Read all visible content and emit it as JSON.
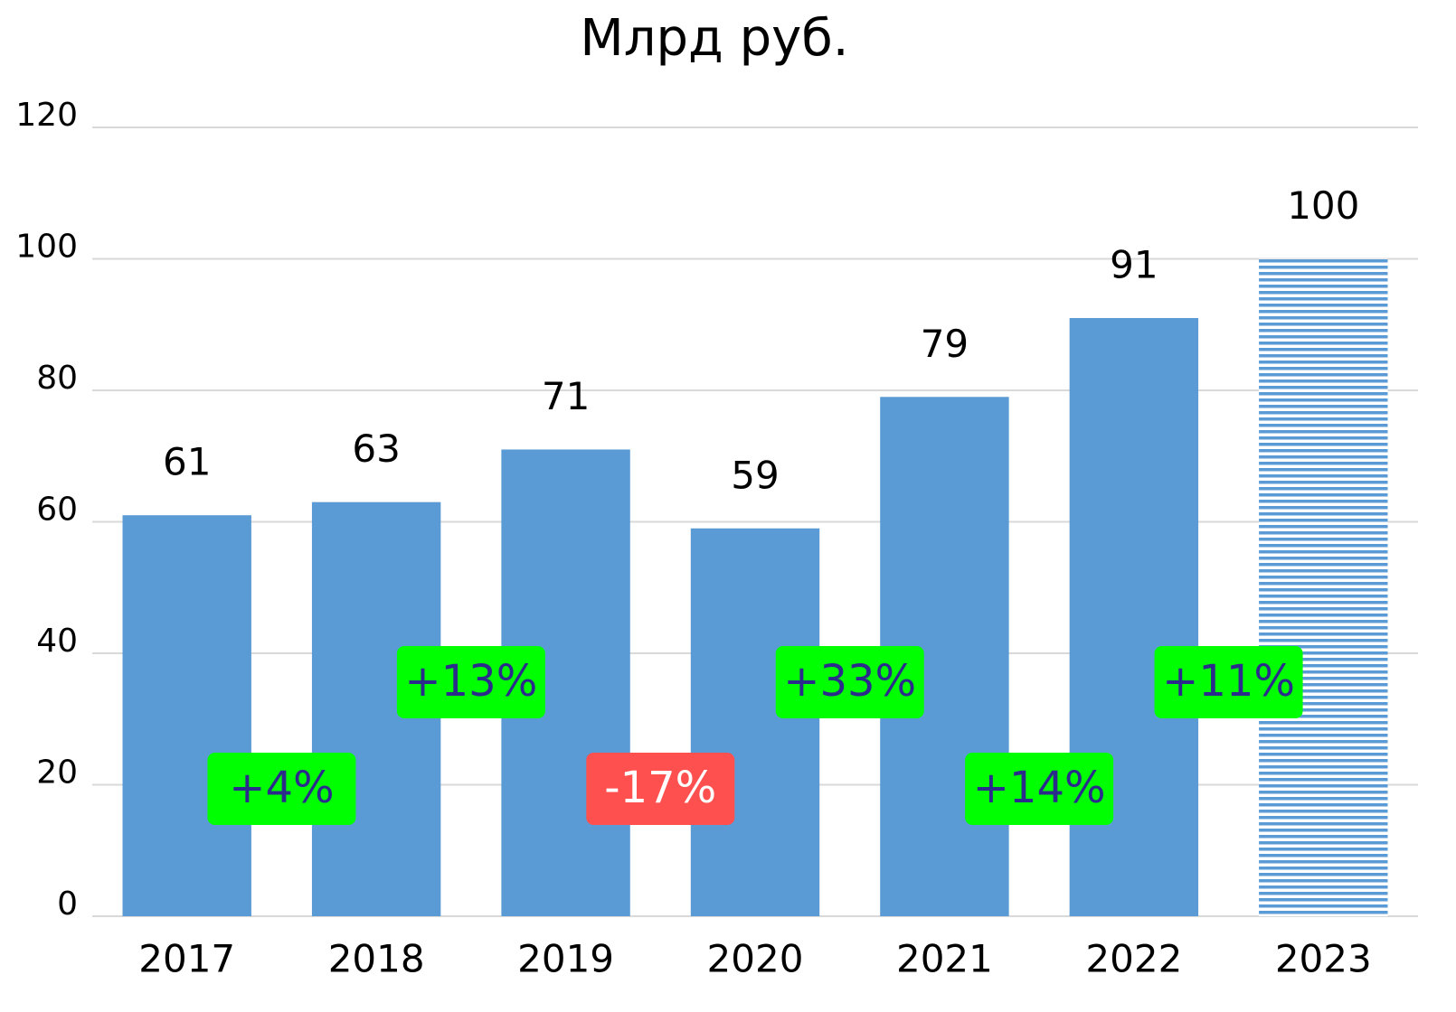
{
  "chart_data": {
    "type": "bar",
    "title": "Млрд руб.",
    "categories": [
      "2017",
      "2018",
      "2019",
      "2020",
      "2021",
      "2022",
      "2023"
    ],
    "values": [
      61,
      63,
      71,
      59,
      79,
      91,
      100
    ],
    "color": "#5b9bd5",
    "bar_styles": [
      "solid",
      "solid",
      "solid",
      "solid",
      "solid",
      "solid",
      "hatched"
    ],
    "ylim": [
      0,
      120
    ],
    "yticks": [
      0,
      20,
      40,
      60,
      80,
      100,
      120
    ],
    "grid": true,
    "annotations": [
      {
        "text": "+4%",
        "color": "#00ff00",
        "text_color": "#2b2b8c"
      },
      {
        "text": "+13%",
        "color": "#00ff00",
        "text_color": "#2b2b8c"
      },
      {
        "text": "-17%",
        "color": "#ff5050",
        "text_color": "#ffffff"
      },
      {
        "text": "+33%",
        "color": "#00ff00",
        "text_color": "#2b2b8c"
      },
      {
        "text": "+14%",
        "color": "#00ff00",
        "text_color": "#2b2b8c"
      },
      {
        "text": "+11%",
        "color": "#00ff00",
        "text_color": "#2b2b8c"
      }
    ]
  }
}
